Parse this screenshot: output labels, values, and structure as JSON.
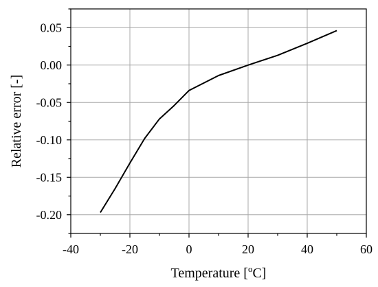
{
  "chart_data": {
    "type": "line",
    "title": "",
    "xlabel": "Temperature [",
    "xlabel_sup": "o",
    "xlabel_tail": "C]",
    "ylabel": "Relative error [-]",
    "xlim": [
      -40,
      60
    ],
    "ylim": [
      -0.225,
      0.075
    ],
    "x_ticks": [
      -40,
      -20,
      0,
      20,
      40,
      60
    ],
    "x_tick_labels": [
      "-40",
      "-20",
      "0",
      "20",
      "40",
      "60"
    ],
    "y_ticks": [
      -0.2,
      -0.15,
      -0.1,
      -0.05,
      0.0,
      0.05
    ],
    "y_tick_labels": [
      "-0.20",
      "-0.15",
      "-0.10",
      "-0.05",
      "0.00",
      "0.05"
    ],
    "grid": true,
    "legend": "none",
    "series": [
      {
        "color": "#000000",
        "x": [
          -30,
          -25,
          -20,
          -15,
          -10,
          -5,
          0,
          10,
          20,
          30,
          40,
          50
        ],
        "y": [
          -0.197,
          -0.165,
          -0.131,
          -0.098,
          -0.072,
          -0.054,
          -0.034,
          -0.014,
          0.0,
          0.013,
          0.029,
          0.046
        ]
      }
    ]
  }
}
